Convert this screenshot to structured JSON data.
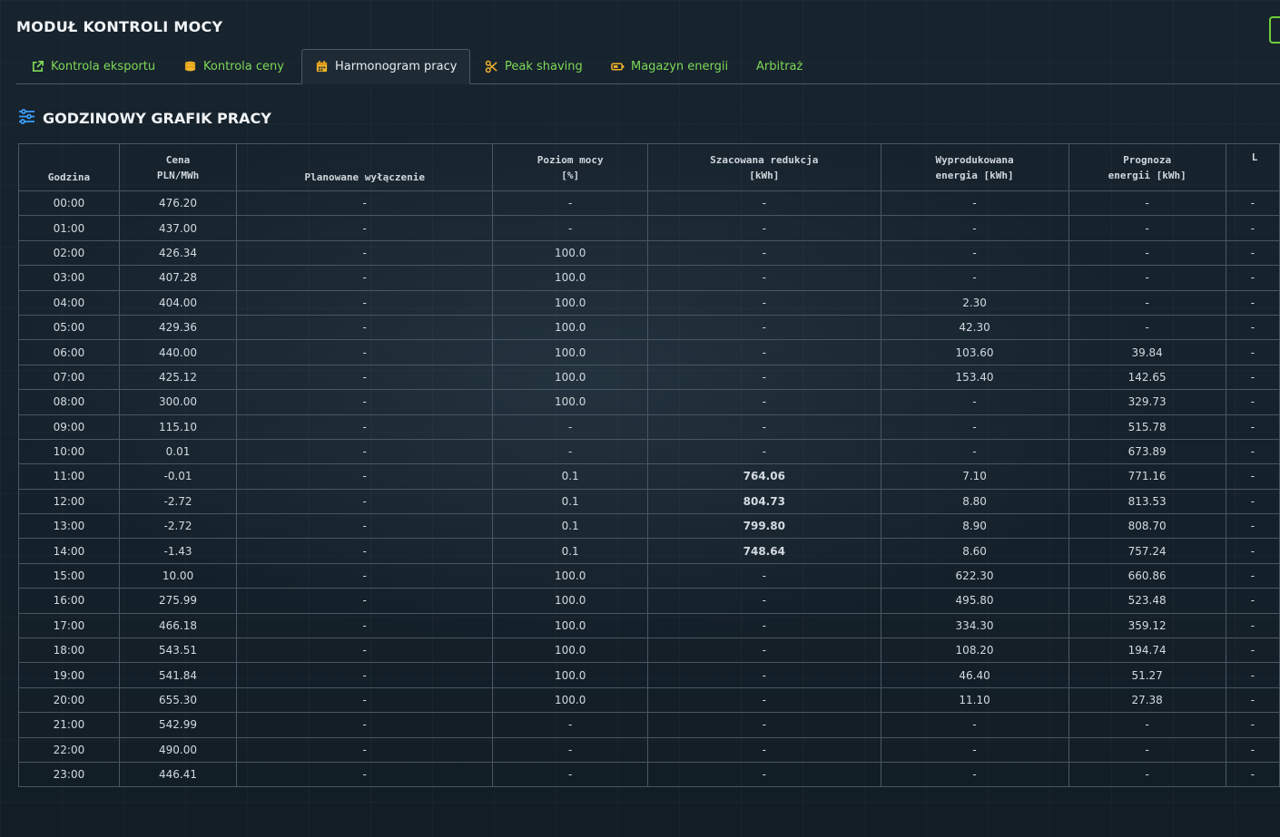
{
  "module_title": "MODUŁ KONTROLI MOCY",
  "tabs": [
    {
      "label": "Kontrola eksportu",
      "icon": "external-link-icon",
      "active": false
    },
    {
      "label": "Kontrola ceny",
      "icon": "coins-icon",
      "active": false
    },
    {
      "label": "Harmonogram pracy",
      "icon": "calendar-icon",
      "active": true
    },
    {
      "label": "Peak shaving",
      "icon": "scissors-icon",
      "active": false
    },
    {
      "label": "Magazyn energii",
      "icon": "battery-icon",
      "active": false
    },
    {
      "label": "Arbitraż",
      "icon": "",
      "active": false
    }
  ],
  "section": {
    "title": "GODZINOWY GRAFIK PRACY",
    "icon": "sliders-icon"
  },
  "colors": {
    "accent": "#7ed957",
    "highlight": "#ff4b4b"
  },
  "table": {
    "headers": [
      {
        "line1": "",
        "line2": "Godzina"
      },
      {
        "line1": "Cena",
        "line2": "PLN/MWh"
      },
      {
        "line1": "",
        "line2": "Planowane wyłączenie"
      },
      {
        "line1": "Poziom mocy",
        "line2": "[%]"
      },
      {
        "line1": "Szacowana redukcja",
        "line2": "[kWh]"
      },
      {
        "line1": "Wyprodukowana",
        "line2": "energia [kWh]"
      },
      {
        "line1": "Prognoza",
        "line2": "energii [kWh]"
      },
      {
        "line1": "L",
        "line2": ""
      }
    ],
    "rows": [
      [
        "00:00",
        "476.20",
        "-",
        "-",
        "-",
        "-",
        "-",
        "-"
      ],
      [
        "01:00",
        "437.00",
        "-",
        "-",
        "-",
        "-",
        "-",
        "-"
      ],
      [
        "02:00",
        "426.34",
        "-",
        "100.0",
        "-",
        "-",
        "-",
        "-"
      ],
      [
        "03:00",
        "407.28",
        "-",
        "100.0",
        "-",
        "-",
        "-",
        "-"
      ],
      [
        "04:00",
        "404.00",
        "-",
        "100.0",
        "-",
        "2.30",
        "-",
        "-"
      ],
      [
        "05:00",
        "429.36",
        "-",
        "100.0",
        "-",
        "42.30",
        "-",
        "-"
      ],
      [
        "06:00",
        "440.00",
        "-",
        "100.0",
        "-",
        "103.60",
        "39.84",
        "-"
      ],
      [
        "07:00",
        "425.12",
        "-",
        "100.0",
        "-",
        "153.40",
        "142.65",
        "-"
      ],
      [
        "08:00",
        "300.00",
        "-",
        "100.0",
        "-",
        "-",
        "329.73",
        "-"
      ],
      [
        "09:00",
        "115.10",
        "-",
        "-",
        "-",
        "-",
        "515.78",
        "-"
      ],
      [
        "10:00",
        "0.01",
        "-",
        "-",
        "-",
        "-",
        "673.89",
        "-"
      ],
      [
        "11:00",
        "-0.01",
        "-",
        "0.1",
        "764.06",
        "7.10",
        "771.16",
        "-"
      ],
      [
        "12:00",
        "-2.72",
        "-",
        "0.1",
        "804.73",
        "8.80",
        "813.53",
        "-"
      ],
      [
        "13:00",
        "-2.72",
        "-",
        "0.1",
        "799.80",
        "8.90",
        "808.70",
        "-"
      ],
      [
        "14:00",
        "-1.43",
        "-",
        "0.1",
        "748.64",
        "8.60",
        "757.24",
        "-"
      ],
      [
        "15:00",
        "10.00",
        "-",
        "100.0",
        "-",
        "622.30",
        "660.86",
        "-"
      ],
      [
        "16:00",
        "275.99",
        "-",
        "100.0",
        "-",
        "495.80",
        "523.48",
        "-"
      ],
      [
        "17:00",
        "466.18",
        "-",
        "100.0",
        "-",
        "334.30",
        "359.12",
        "-"
      ],
      [
        "18:00",
        "543.51",
        "-",
        "100.0",
        "-",
        "108.20",
        "194.74",
        "-"
      ],
      [
        "19:00",
        "541.84",
        "-",
        "100.0",
        "-",
        "46.40",
        "51.27",
        "-"
      ],
      [
        "20:00",
        "655.30",
        "-",
        "100.0",
        "-",
        "11.10",
        "27.38",
        "-"
      ],
      [
        "21:00",
        "542.99",
        "-",
        "-",
        "-",
        "-",
        "-",
        "-"
      ],
      [
        "22:00",
        "490.00",
        "-",
        "-",
        "-",
        "-",
        "-",
        "-"
      ],
      [
        "23:00",
        "446.41",
        "-",
        "-",
        "-",
        "-",
        "-",
        "-"
      ]
    ]
  }
}
